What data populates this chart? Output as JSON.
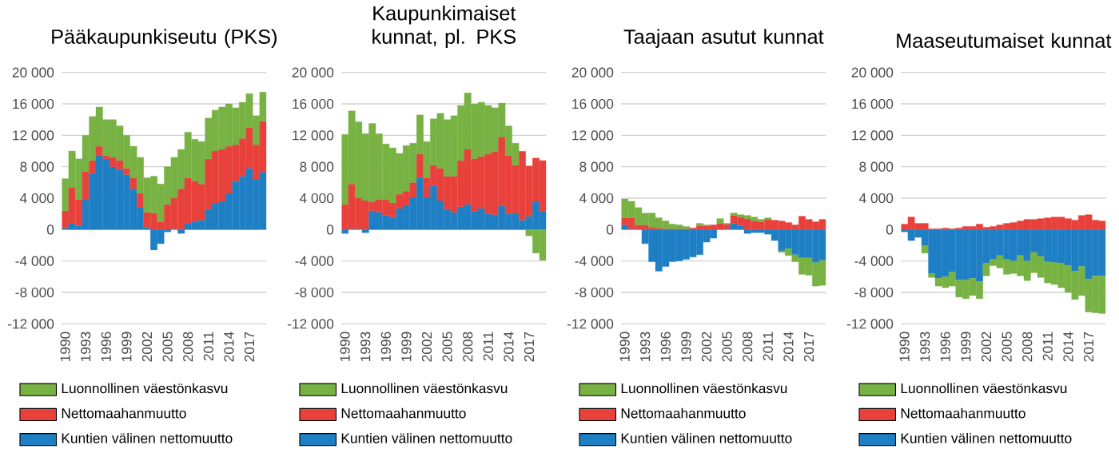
{
  "chart_data": [
    {
      "type": "bar",
      "stacked": true,
      "title": "Pääkaupunkiseutu (PKS)",
      "grid": "y",
      "legend": "bottom",
      "categories": [
        "1990",
        null,
        null,
        "1993",
        null,
        null,
        "1996",
        null,
        null,
        "1999",
        null,
        null,
        "2002",
        null,
        null,
        "2005",
        null,
        null,
        "2008",
        null,
        null,
        "2011",
        null,
        null,
        "2014",
        null,
        null,
        "2017",
        null,
        null
      ],
      "ylim": [
        -12000,
        20000
      ],
      "yticks": [
        {
          "value": -12000,
          "label": "-12 000"
        },
        {
          "value": -8000,
          "label": "-8 000"
        },
        {
          "value": -4000,
          "label": "-4 000"
        },
        0,
        {
          "value": 4000,
          "label": "4 000"
        },
        {
          "value": 8000,
          "label": "8 000"
        },
        {
          "value": 12000,
          "label": "12 000"
        },
        {
          "value": 16000,
          "label": "16 000"
        },
        {
          "value": 20000,
          "label": "20 000"
        }
      ],
      "series": [
        {
          "name": "Kuntien välinen nettomuutto",
          "color": "#1f7fc4",
          "values": [
            200,
            800,
            500,
            3800,
            7200,
            9400,
            9000,
            8000,
            7600,
            7000,
            5200,
            2800,
            300,
            -2600,
            -1800,
            -300,
            100,
            -500,
            800,
            1000,
            1200,
            2600,
            3400,
            3600,
            4600,
            6200,
            6800,
            7800,
            6400,
            7300
          ]
        },
        {
          "name": "Nettomaahanmuutto",
          "color": "#e8413c",
          "values": [
            2200,
            4600,
            3300,
            3600,
            1600,
            1200,
            400,
            1200,
            1200,
            800,
            1400,
            1800,
            1900,
            2100,
            1000,
            3200,
            3900,
            5200,
            5800,
            5200,
            4600,
            6400,
            6600,
            6600,
            6000,
            4600,
            4800,
            5200,
            4400,
            6500
          ]
        },
        {
          "name": "Luonnollinen väestönkasvu",
          "color": "#77b243",
          "values": [
            4100,
            4600,
            5200,
            4600,
            5600,
            5000,
            4600,
            4800,
            4400,
            4200,
            4000,
            4600,
            4400,
            4700,
            4800,
            4800,
            5200,
            5000,
            5800,
            5300,
            5400,
            5200,
            5200,
            5400,
            5400,
            4700,
            4600,
            4300,
            3700,
            3700
          ]
        }
      ]
    },
    {
      "type": "bar",
      "stacked": true,
      "title": "Kaupunkimaiset kunnat, pl. PKS",
      "grid": "y",
      "legend": "bottom",
      "categories": [
        "1990",
        null,
        null,
        "1993",
        null,
        null,
        "1996",
        null,
        null,
        "1999",
        null,
        null,
        "2002",
        null,
        null,
        "2005",
        null,
        null,
        "2008",
        null,
        null,
        "2011",
        null,
        null,
        "2014",
        null,
        null,
        "2017",
        null,
        null
      ],
      "ylim": [
        -12000,
        20000
      ],
      "yticks": [
        {
          "value": -12000,
          "label": "-12 000"
        },
        {
          "value": -8000,
          "label": "-8 000"
        },
        {
          "value": -4000,
          "label": "-4 000"
        },
        0,
        {
          "value": 4000,
          "label": "4 000"
        },
        {
          "value": 8000,
          "label": "8 000"
        },
        {
          "value": 12000,
          "label": "12 000"
        },
        {
          "value": 16000,
          "label": "16 000"
        },
        {
          "value": 20000,
          "label": "20 000"
        }
      ],
      "series": [
        {
          "name": "Kuntien välinen nettomuutto",
          "color": "#1f7fc4",
          "values": [
            -500,
            100,
            100,
            -400,
            2400,
            2200,
            1800,
            1500,
            2700,
            3100,
            4100,
            6600,
            4100,
            5600,
            3700,
            2600,
            2200,
            2900,
            3200,
            2300,
            2700,
            2000,
            1900,
            3000,
            2000,
            2100,
            1200,
            1700,
            3600,
            2300
          ]
        },
        {
          "name": "Nettomaahanmuutto",
          "color": "#e8413c",
          "values": [
            3200,
            5700,
            3900,
            3700,
            1100,
            1600,
            2000,
            1900,
            1800,
            1800,
            1900,
            3000,
            2500,
            2600,
            4100,
            4200,
            4600,
            5900,
            7000,
            6700,
            6600,
            7600,
            8000,
            8800,
            7400,
            6100,
            8700,
            6400,
            5500,
            6500
          ]
        },
        {
          "name": "Luonnollinen väestönkasvu",
          "color": "#77b243",
          "values": [
            8900,
            9300,
            9700,
            8500,
            10000,
            8400,
            7100,
            7000,
            5200,
            5800,
            5000,
            5000,
            4600,
            5900,
            7000,
            7200,
            7700,
            7000,
            7200,
            7000,
            6900,
            6200,
            5600,
            4300,
            3800,
            2800,
            100,
            -800,
            -3000,
            -3900
          ]
        }
      ]
    },
    {
      "type": "bar",
      "stacked": true,
      "title": "Taajaan asutut kunnat",
      "grid": "y",
      "legend": "bottom",
      "categories": [
        "1990",
        null,
        null,
        "1993",
        null,
        null,
        "1996",
        null,
        null,
        "1999",
        null,
        null,
        "2002",
        null,
        null,
        "2005",
        null,
        null,
        "2008",
        null,
        null,
        "2011",
        null,
        null,
        "2014",
        null,
        null,
        "2017",
        null,
        null
      ],
      "ylim": [
        -12000,
        20000
      ],
      "yticks": [
        {
          "value": -12000,
          "label": "-12 000"
        },
        {
          "value": -8000,
          "label": "-8 000"
        },
        {
          "value": -4000,
          "label": "-4 000"
        },
        0,
        {
          "value": 4000,
          "label": "4 000"
        },
        {
          "value": 8000,
          "label": "8 000"
        },
        {
          "value": 12000,
          "label": "12 000"
        },
        {
          "value": 16000,
          "label": "16 000"
        },
        {
          "value": 20000,
          "label": "20 000"
        }
      ],
      "series": [
        {
          "name": "Kuntien välinen nettomuutto",
          "color": "#1f7fc4",
          "values": [
            600,
            100,
            0,
            -1800,
            -4100,
            -5300,
            -4700,
            -4100,
            -4000,
            -3800,
            -3500,
            -3200,
            -1600,
            -1100,
            0,
            100,
            800,
            500,
            -500,
            -400,
            -400,
            -600,
            -1400,
            -2700,
            -2400,
            -3200,
            -3600,
            -3600,
            -4200,
            -3900
          ]
        },
        {
          "name": "Nettomaahanmuutto",
          "color": "#e8413c",
          "values": [
            900,
            1400,
            600,
            600,
            300,
            200,
            100,
            100,
            100,
            100,
            200,
            500,
            500,
            600,
            800,
            600,
            1000,
            1100,
            1400,
            1100,
            1000,
            1300,
            1200,
            1100,
            900,
            600,
            1700,
            1300,
            1000,
            1300
          ]
        },
        {
          "name": "Luonnollinen väestönkasvu",
          "color": "#77b243",
          "values": [
            2400,
            2100,
            2200,
            1500,
            1800,
            1300,
            1000,
            600,
            500,
            300,
            0,
            300,
            100,
            0,
            600,
            100,
            300,
            300,
            400,
            500,
            300,
            200,
            0,
            -200,
            -900,
            -900,
            -2100,
            -2200,
            -3000,
            -3200
          ]
        }
      ]
    },
    {
      "type": "bar",
      "stacked": true,
      "title": "Maaseutumaiset kunnat",
      "grid": "y",
      "legend": "bottom",
      "categories": [
        "1990",
        null,
        null,
        "1993",
        null,
        null,
        "1996",
        null,
        null,
        "1999",
        null,
        null,
        "2002",
        null,
        null,
        "2005",
        null,
        null,
        "2008",
        null,
        null,
        "2011",
        null,
        null,
        "2014",
        null,
        null,
        "2017",
        null,
        null
      ],
      "ylim": [
        -12000,
        20000
      ],
      "yticks": [
        {
          "value": -12000,
          "label": "-12 000"
        },
        {
          "value": -8000,
          "label": "-8 000"
        },
        {
          "value": -4000,
          "label": "-4 000"
        },
        0,
        {
          "value": 4000,
          "label": "4 000"
        },
        {
          "value": 8000,
          "label": "8 000"
        },
        {
          "value": 12000,
          "label": "12 000"
        },
        {
          "value": 16000,
          "label": "16 000"
        },
        {
          "value": 20000,
          "label": "20 000"
        }
      ],
      "series": [
        {
          "name": "Kuntien välinen nettomuutto",
          "color": "#1f7fc4",
          "values": [
            -300,
            -1400,
            -1000,
            -2000,
            -5600,
            -6200,
            -6000,
            -5400,
            -6400,
            -6400,
            -6200,
            -6600,
            -4300,
            -3800,
            -3300,
            -3800,
            -4000,
            -3300,
            -4000,
            -2900,
            -3400,
            -4100,
            -4200,
            -4300,
            -4600,
            -5300,
            -4700,
            -6300,
            -5900,
            -5900
          ]
        },
        {
          "name": "Nettomaahanmuutto",
          "color": "#e8413c",
          "values": [
            700,
            1600,
            800,
            800,
            100,
            100,
            200,
            100,
            200,
            400,
            400,
            700,
            300,
            400,
            600,
            800,
            900,
            1100,
            1300,
            1300,
            1400,
            1500,
            1600,
            1600,
            1400,
            1200,
            1800,
            1900,
            1200,
            1100
          ]
        },
        {
          "name": "Luonnollinen väestönkasvu",
          "color": "#77b243",
          "values": [
            0,
            0,
            0,
            -1000,
            -500,
            -1000,
            -1400,
            -1800,
            -2200,
            -2400,
            -2200,
            -2200,
            -1600,
            -800,
            -1600,
            -1900,
            -1600,
            -2600,
            -2500,
            -2600,
            -2700,
            -2700,
            -2800,
            -3100,
            -3400,
            -3600,
            -3700,
            -4200,
            -4700,
            -4800
          ]
        }
      ]
    }
  ]
}
